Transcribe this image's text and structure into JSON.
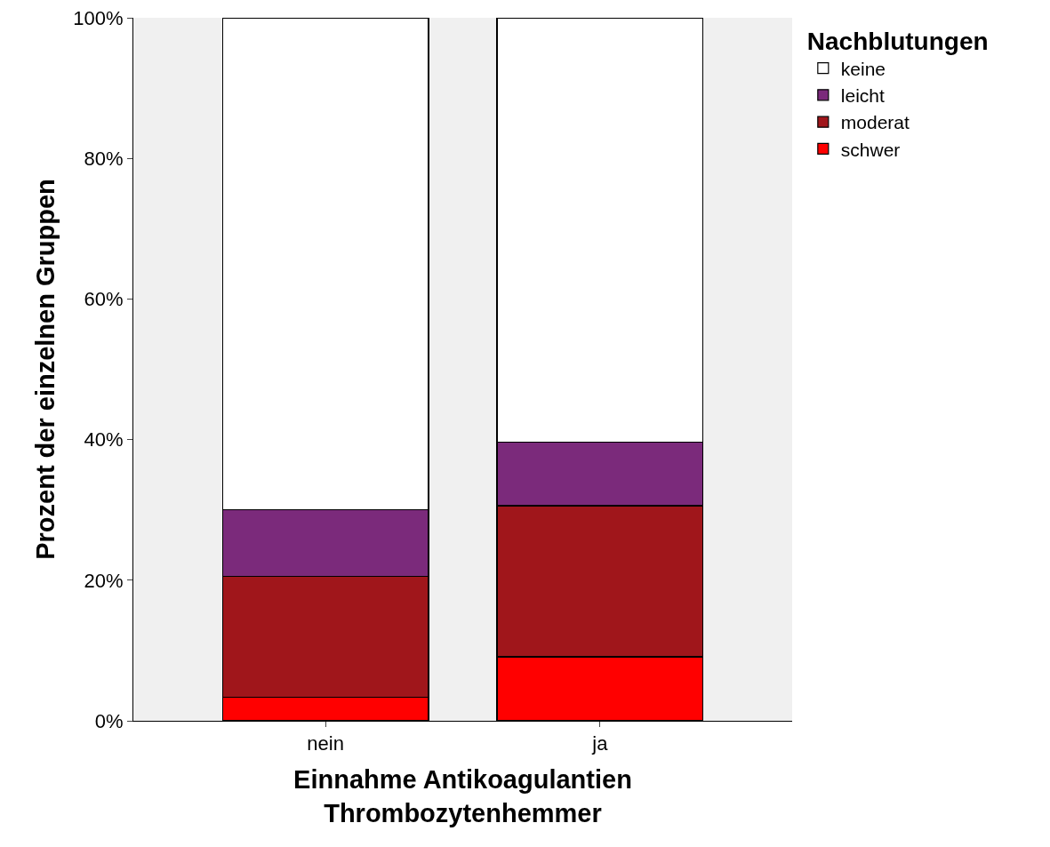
{
  "chart_data": {
    "type": "bar",
    "stacked": true,
    "categories": [
      "nein",
      "ja"
    ],
    "xlabel": "Einnahme Antikoagulantien\nThrombozytenhemmer",
    "ylabel": "Prozent der einzelnen Gruppen",
    "legend_title": "Nachblutungen",
    "series": [
      {
        "name": "schwer",
        "color": "#ff0000",
        "values": [
          3.4,
          9.1
        ]
      },
      {
        "name": "moderat",
        "color": "#a0161b",
        "values": [
          17.1,
          21.5
        ]
      },
      {
        "name": "leicht",
        "color": "#7b2a7b",
        "values": [
          9.5,
          9.0
        ]
      },
      {
        "name": "keine",
        "color": "#ffffff",
        "values": [
          70.0,
          60.4
        ]
      }
    ],
    "ylim": [
      0,
      100
    ],
    "yticks": [
      {
        "value": 0,
        "label": "0%"
      },
      {
        "value": 20,
        "label": "20%"
      },
      {
        "value": 40,
        "label": "40%"
      },
      {
        "value": 60,
        "label": "60%"
      },
      {
        "value": 80,
        "label": "80%"
      },
      {
        "value": 100,
        "label": "100%"
      }
    ],
    "grid": false,
    "legend": "top right"
  }
}
